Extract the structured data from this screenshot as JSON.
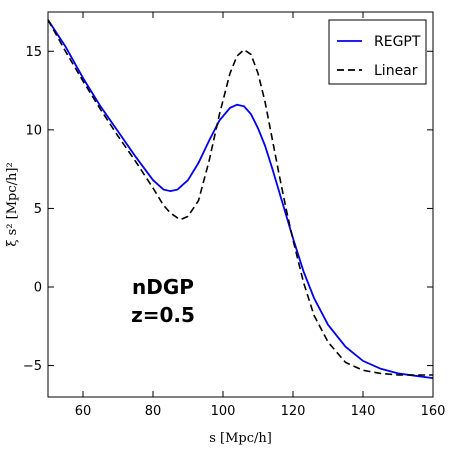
{
  "chart_data": {
    "type": "line",
    "title": "",
    "xlabel": "s [Mpc/h]",
    "ylabel": "ξ s² [Mpc/h]²",
    "xlim": [
      50,
      160
    ],
    "ylim": [
      -7,
      17.5
    ],
    "xticks": [
      60,
      80,
      100,
      120,
      140,
      160
    ],
    "xtick_labels": [
      "60",
      "80",
      "100",
      "120",
      "140",
      "160"
    ],
    "yticks": [
      -5,
      0,
      5,
      10,
      15
    ],
    "ytick_labels": [
      "−5",
      "0",
      "5",
      "10",
      "15"
    ],
    "grid": false,
    "legend_position": "top-right",
    "annotations": [
      "nDGP",
      "z=0.5"
    ],
    "series": [
      {
        "name": "REGPT",
        "color": "#0000ee",
        "dash": "solid",
        "x": [
          50,
          55,
          60,
          65,
          70,
          75,
          80,
          83,
          85,
          87,
          90,
          93,
          96,
          99,
          102,
          104,
          106,
          108,
          110,
          112,
          114,
          116,
          118,
          120,
          123,
          126,
          130,
          135,
          140,
          145,
          150,
          155,
          160
        ],
        "y": [
          17.0,
          15.3,
          13.3,
          11.5,
          9.9,
          8.3,
          6.8,
          6.2,
          6.1,
          6.2,
          6.8,
          7.9,
          9.3,
          10.6,
          11.4,
          11.6,
          11.5,
          11.0,
          10.1,
          9.0,
          7.6,
          6.1,
          4.6,
          3.1,
          1.0,
          -0.7,
          -2.4,
          -3.8,
          -4.7,
          -5.2,
          -5.5,
          -5.65,
          -5.8
        ]
      },
      {
        "name": "Linear",
        "color": "#000000",
        "dash": "dashed",
        "x": [
          50,
          55,
          60,
          65,
          70,
          75,
          80,
          83,
          85,
          87,
          88,
          90,
          93,
          96,
          99,
          102,
          104,
          106,
          108,
          110,
          112,
          114,
          116,
          118,
          120,
          123,
          126,
          130,
          135,
          140,
          145,
          150,
          155,
          160
        ],
        "y": [
          17.0,
          15.0,
          13.1,
          11.3,
          9.6,
          8.0,
          6.3,
          5.2,
          4.7,
          4.4,
          4.3,
          4.5,
          5.5,
          8.0,
          11.0,
          13.6,
          14.7,
          15.1,
          14.8,
          13.6,
          11.8,
          9.5,
          7.2,
          5.0,
          3.0,
          0.3,
          -1.8,
          -3.5,
          -4.8,
          -5.3,
          -5.5,
          -5.6,
          -5.6,
          -5.6
        ]
      }
    ]
  }
}
